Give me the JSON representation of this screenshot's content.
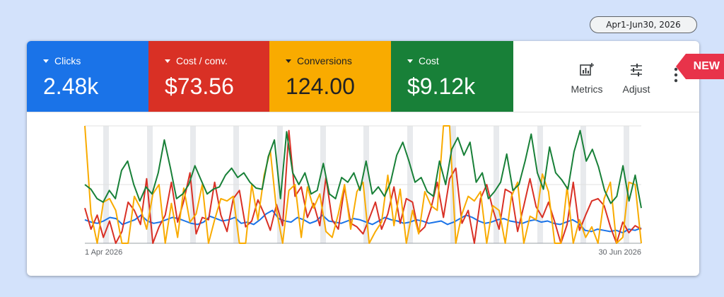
{
  "date_range": "Apr1-Jun30, 2026",
  "tiles": [
    {
      "label": "Clicks",
      "value": "2.48k",
      "color": "#1a73e8"
    },
    {
      "label": "Cost / conv.",
      "value": "$73.56",
      "color": "#d93025"
    },
    {
      "label": "Conversions",
      "value": "124.00",
      "color": "#f9ab00"
    },
    {
      "label": "Cost",
      "value": "$9.12k",
      "color": "#188038"
    }
  ],
  "toolbar": {
    "metrics_label": "Metrics",
    "adjust_label": "Adjust",
    "more_icon": "more-vert-icon"
  },
  "badge": "NEW",
  "chart_data": {
    "type": "line",
    "x_start_label": "1 Apr 2026",
    "x_end_label": "30 Jun 2026",
    "grid": true,
    "ylim": [
      0,
      100
    ],
    "series": [
      {
        "color": "#1a73e8",
        "values": [
          20,
          18,
          17,
          19,
          22,
          21,
          16,
          18,
          20,
          24,
          19,
          17,
          18,
          20,
          22,
          21,
          19,
          17,
          16,
          18,
          23,
          21,
          19,
          20,
          22,
          17,
          18,
          16,
          20,
          25,
          28,
          21,
          19,
          18,
          22,
          20,
          17,
          19,
          24,
          19,
          18,
          17,
          19,
          21,
          20,
          18,
          16,
          19,
          22,
          20,
          19,
          17,
          18,
          20,
          19,
          17,
          18,
          19,
          16,
          18,
          21,
          24,
          22,
          19,
          17,
          18,
          20,
          21,
          19,
          18,
          17,
          19,
          20,
          18,
          19,
          17,
          16,
          18,
          20,
          17,
          11,
          10,
          12,
          11,
          10,
          11,
          9,
          12,
          11,
          13
        ]
      },
      {
        "color": "#d93025",
        "values": [
          30,
          12,
          24,
          5,
          19,
          0,
          10,
          35,
          28,
          16,
          55,
          0,
          14,
          24,
          52,
          18,
          36,
          60,
          8,
          22,
          20,
          52,
          24,
          10,
          38,
          45,
          14,
          19,
          37,
          25,
          11,
          33,
          15,
          96,
          40,
          48,
          22,
          34,
          15,
          56,
          20,
          12,
          48,
          17,
          14,
          8,
          21,
          35,
          12,
          25,
          48,
          17,
          38,
          35,
          9,
          14,
          30,
          52,
          22,
          55,
          64,
          17,
          28,
          0,
          38,
          50,
          29,
          12,
          46,
          43,
          10,
          32,
          55,
          31,
          22,
          35,
          18,
          0,
          16,
          52,
          11,
          24,
          36,
          38,
          32,
          14,
          0,
          18,
          9,
          15,
          12
        ]
      },
      {
        "color": "#f9ab00",
        "values": [
          100,
          25,
          0,
          35,
          38,
          28,
          0,
          0,
          40,
          30,
          12,
          42,
          50,
          0,
          34,
          5,
          47,
          18,
          25,
          50,
          0,
          20,
          38,
          36,
          40,
          0,
          0,
          50,
          20,
          58,
          79,
          28,
          0,
          45,
          50,
          5,
          48,
          30,
          42,
          10,
          5,
          25,
          50,
          12,
          44,
          52,
          0,
          10,
          18,
          58,
          15,
          46,
          0,
          28,
          8,
          44,
          32,
          28,
          100,
          100,
          0,
          25,
          40,
          36,
          44,
          0,
          32,
          28,
          0,
          40,
          52,
          0,
          23,
          20,
          59,
          44,
          0,
          0,
          48,
          0,
          20,
          5,
          14,
          0,
          38,
          52,
          0,
          5,
          52,
          50,
          0
        ]
      },
      {
        "color": "#188038",
        "values": [
          50,
          46,
          38,
          35,
          45,
          38,
          62,
          70,
          50,
          36,
          48,
          42,
          60,
          88,
          64,
          38,
          42,
          50,
          66,
          54,
          42,
          46,
          48,
          58,
          64,
          56,
          60,
          52,
          47,
          46,
          74,
          88,
          38,
          95,
          60,
          50,
          60,
          42,
          45,
          68,
          42,
          38,
          56,
          52,
          60,
          45,
          70,
          42,
          48,
          40,
          52,
          75,
          86,
          70,
          52,
          56,
          44,
          40,
          70,
          50,
          80,
          90,
          75,
          86,
          52,
          60,
          38,
          44,
          52,
          76,
          45,
          50,
          70,
          93,
          60,
          46,
          82,
          60,
          54,
          46,
          78,
          96,
          70,
          80,
          65,
          45,
          34,
          40,
          66,
          36,
          58,
          30
        ]
      }
    ]
  }
}
